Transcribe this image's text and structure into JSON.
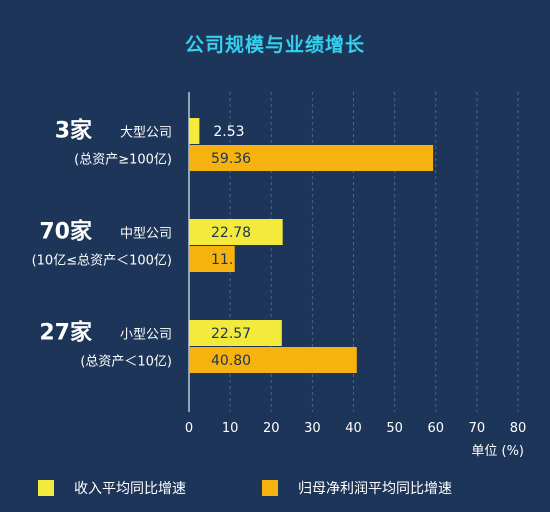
{
  "title": "公司规模与业绩增长",
  "chart_data": {
    "type": "bar",
    "orientation": "horizontal",
    "title": "公司规模与业绩增长",
    "unit_label": "单位 (%)",
    "xlim": [
      0,
      80
    ],
    "xticks": [
      "0",
      "10",
      "20",
      "30",
      "40",
      "50",
      "60",
      "70",
      "80"
    ],
    "grid": "vertical dashed",
    "groups": [
      {
        "count": "3家",
        "name": "大型公司",
        "range": "(总资产≥100亿)"
      },
      {
        "count": "70家",
        "name": "中型公司",
        "range": "(10亿≤总资产＜100亿)"
      },
      {
        "count": "27家",
        "name": "小型公司",
        "range": "(总资产＜10亿)"
      }
    ],
    "series": [
      {
        "name": "收入平均同比增速",
        "color": "#f3ea3b",
        "values": [
          2.53,
          22.78,
          22.57
        ],
        "labels": [
          "2.53",
          "22.78",
          "22.57"
        ]
      },
      {
        "name": "归母净利润平均同比增速",
        "color": "#f6b30f",
        "values": [
          59.36,
          11.12,
          40.8
        ],
        "labels": [
          "59.36",
          "11.12",
          "40.80"
        ]
      }
    ]
  }
}
